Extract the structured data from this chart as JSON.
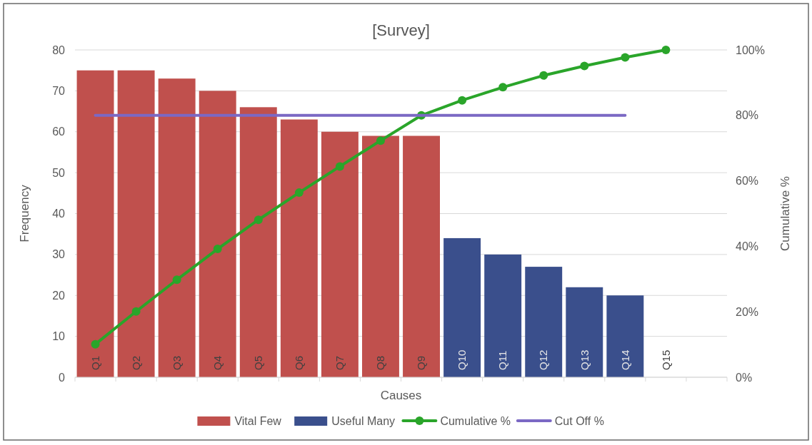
{
  "chart_data": {
    "type": "bar",
    "title": "[Survey]",
    "xlabel": "Causes",
    "ylabel": "Frequency",
    "y2label": "Cumulative %",
    "categories": [
      "Q1",
      "Q2",
      "Q3",
      "Q4",
      "Q5",
      "Q6",
      "Q7",
      "Q8",
      "Q9",
      "Q10",
      "Q11",
      "Q12",
      "Q13",
      "Q14",
      "Q15",
      null
    ],
    "stacked": true,
    "series": [
      {
        "name": "Vital Few",
        "color": "#c0504d",
        "values": [
          75,
          75,
          73,
          70,
          66,
          63,
          60,
          59,
          59,
          null,
          null,
          null,
          null,
          null,
          null,
          null
        ]
      },
      {
        "name": "Useful Many",
        "color": "#3a4f8c",
        "values": [
          null,
          null,
          null,
          null,
          null,
          null,
          null,
          null,
          null,
          34,
          30,
          27,
          22,
          20,
          null,
          null
        ]
      },
      {
        "name": "Cumulative %",
        "type": "line",
        "axis": "y2",
        "color": "#2aa52a",
        "marker": "circle",
        "line_style": "solid",
        "values": [
          10.1,
          20.1,
          29.8,
          39.2,
          48.1,
          56.4,
          64.4,
          72.3,
          80,
          84.6,
          88.6,
          92.2,
          95.1,
          97.7,
          100,
          null
        ]
      },
      {
        "name": "Cut Off %",
        "type": "line",
        "axis": "y2",
        "color": "#7b68c4",
        "marker": "none",
        "line_style": "solid",
        "values": [
          80,
          80,
          80,
          80,
          80,
          80,
          80,
          80,
          80,
          80,
          80,
          80,
          80,
          80,
          null,
          null
        ]
      }
    ],
    "ylim": [
      0,
      80
    ],
    "yticks": [
      0,
      10,
      20,
      30,
      40,
      50,
      60,
      70,
      80
    ],
    "y2lim": [
      0,
      100
    ],
    "y2ticks": [
      {
        "value": 0,
        "label": "0%"
      },
      {
        "value": 20,
        "label": "20%"
      },
      {
        "value": 40,
        "label": "40%"
      },
      {
        "value": 60,
        "label": "60%"
      },
      {
        "value": 80,
        "label": "80%"
      },
      {
        "value": 100,
        "label": "100%"
      }
    ],
    "grid": "y",
    "legend": "bottom"
  }
}
